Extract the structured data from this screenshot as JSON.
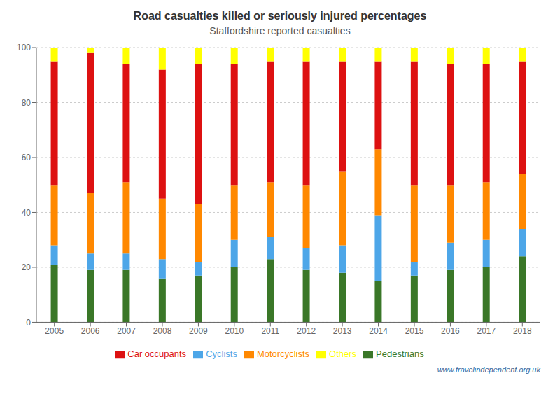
{
  "chart_data": {
    "type": "bar",
    "title": "Road casualties killed or seriously injured percentages",
    "subtitle": "Staffordshire reported casualties",
    "categories": [
      2005,
      2006,
      2007,
      2008,
      2009,
      2010,
      2011,
      2012,
      2013,
      2014,
      2015,
      2016,
      2017,
      2018
    ],
    "series": [
      {
        "name": "Pedestrians",
        "color": "#3a7728",
        "values": [
          21,
          19,
          19,
          16,
          17,
          20,
          23,
          19,
          18,
          15,
          17,
          19,
          20,
          24
        ]
      },
      {
        "name": "Cyclists",
        "color": "#4da6e8",
        "values": [
          7,
          6,
          6,
          7,
          5,
          10,
          8,
          8,
          10,
          24,
          5,
          10,
          10,
          10
        ]
      },
      {
        "name": "Motorcyclists",
        "color": "#ff8800",
        "values": [
          22,
          22,
          26,
          22,
          21,
          20,
          20,
          23,
          27,
          24,
          28,
          21,
          21,
          20
        ]
      },
      {
        "name": "Car occupants",
        "color": "#dd1111",
        "values": [
          45,
          51,
          43,
          47,
          51,
          44,
          44,
          45,
          40,
          32,
          45,
          44,
          43,
          41
        ]
      },
      {
        "name": "Others",
        "color": "#ffff00",
        "values": [
          5,
          2,
          6,
          8,
          6,
          6,
          5,
          5,
          5,
          5,
          5,
          6,
          6,
          5
        ]
      }
    ],
    "ylim": [
      0,
      100
    ],
    "yticks": [
      0,
      20,
      40,
      60,
      80,
      100
    ],
    "stacked": true,
    "grid": true,
    "legend": "bottom",
    "annotations": [
      "www.travelindependent.org.uk"
    ]
  }
}
